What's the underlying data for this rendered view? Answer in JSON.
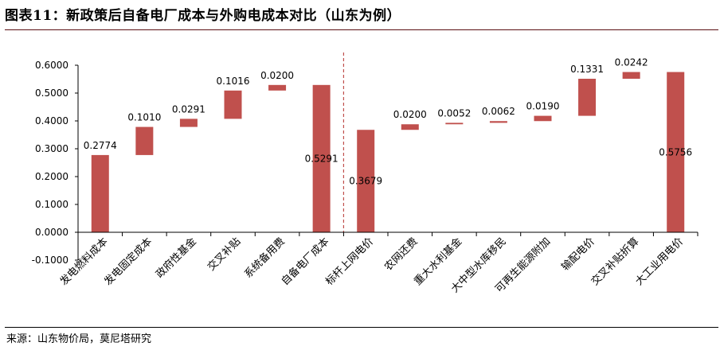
{
  "figure_title": "图表11：新政策后自备电厂成本与外购电成本对比（山东为例）",
  "source_note": "来源：山东物价局，莫尼塔研究",
  "colors": {
    "bar": "#c0504d",
    "divider": "#c0504d",
    "axis": "#000000"
  },
  "chart_data": {
    "type": "bar",
    "subtype": "waterfall",
    "title": "",
    "xlabel": "",
    "ylabel": "",
    "ylim": [
      -0.1,
      0.6
    ],
    "yticks": [
      "-0.1000",
      "0.0000",
      "0.1000",
      "0.2000",
      "0.3000",
      "0.4000",
      "0.5000",
      "0.6000"
    ],
    "grid": false,
    "legend": "none",
    "categories": [
      "发电燃料成本",
      "发电固定成本",
      "政府性基金",
      "交叉补贴",
      "系统备用费",
      "自备电厂成本",
      "标杆上网电价",
      "农网还费",
      "重大水利基金",
      "大中型水库移民",
      "可再生能源附加",
      "输配电价",
      "交叉补贴折算",
      "大工业用电价"
    ],
    "bars": [
      {
        "base": 0,
        "value": 0.2774,
        "label": "0.2774"
      },
      {
        "base": 0.2774,
        "value": 0.101,
        "label": "0.1010"
      },
      {
        "base": 0.3784,
        "value": 0.0291,
        "label": "0.0291"
      },
      {
        "base": 0.4075,
        "value": 0.1016,
        "label": "0.1016"
      },
      {
        "base": 0.5091,
        "value": 0.02,
        "label": "0.0200"
      },
      {
        "base": 0,
        "value": 0.5291,
        "label": "0.5291"
      },
      {
        "base": 0,
        "value": 0.3679,
        "label": "0.3679"
      },
      {
        "base": 0.3679,
        "value": 0.02,
        "label": "0.0200"
      },
      {
        "base": 0.3879,
        "value": 0.0052,
        "label": "0.0052"
      },
      {
        "base": 0.3931,
        "value": 0.0062,
        "label": "0.0062"
      },
      {
        "base": 0.3993,
        "value": 0.019,
        "label": "0.0190"
      },
      {
        "base": 0.4183,
        "value": 0.1331,
        "label": "0.1331"
      },
      {
        "base": 0.5514,
        "value": 0.0242,
        "label": "0.0242"
      },
      {
        "base": 0,
        "value": 0.5756,
        "label": "0.5756"
      }
    ]
  }
}
